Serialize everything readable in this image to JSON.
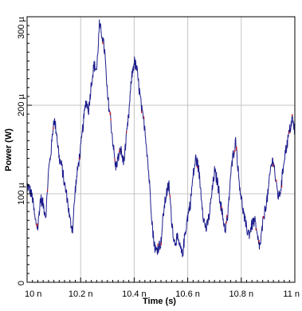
{
  "chart_data": {
    "type": "line",
    "title": "",
    "xlabel": "Time (s)",
    "ylabel": "Power (W)",
    "xlim": [
      10.0,
      11.0
    ],
    "ylim": [
      0,
      300
    ],
    "x_ticks": [
      {
        "value": 10.0,
        "label": "10 n"
      },
      {
        "value": 10.2,
        "label": "10.2 n"
      },
      {
        "value": 10.4,
        "label": "10.4 n"
      },
      {
        "value": 10.6,
        "label": "10.6 n"
      },
      {
        "value": 10.8,
        "label": "10.8 n"
      },
      {
        "value": 11.0,
        "label": "11 n"
      }
    ],
    "y_ticks": [
      {
        "value": 0,
        "label": "0"
      },
      {
        "value": 100,
        "label": "100 µ"
      },
      {
        "value": 200,
        "label": "200 µ"
      },
      {
        "value": 300,
        "label": "300 µ"
      }
    ],
    "grid": true,
    "grid_color": "#c4c4c4",
    "line_color": "#1c1c8c",
    "accent_color": "#d02020",
    "series": [
      {
        "x": [
          10.0,
          10.01,
          10.02,
          10.03,
          10.04,
          10.05,
          10.06,
          10.07,
          10.08,
          10.09,
          10.1,
          10.11,
          10.12,
          10.13,
          10.14,
          10.15,
          10.16,
          10.17,
          10.18,
          10.19,
          10.2,
          10.21,
          10.22,
          10.23,
          10.24,
          10.25,
          10.26,
          10.27,
          10.28,
          10.29,
          10.3,
          10.31,
          10.32,
          10.33,
          10.34,
          10.35,
          10.36,
          10.37,
          10.38,
          10.39,
          10.4,
          10.41,
          10.42,
          10.43,
          10.44,
          10.45,
          10.46,
          10.47,
          10.48,
          10.49,
          10.5,
          10.51,
          10.52,
          10.53,
          10.54,
          10.55,
          10.56,
          10.57,
          10.58,
          10.59,
          10.6,
          10.61,
          10.62,
          10.63,
          10.64,
          10.65,
          10.66,
          10.67,
          10.68,
          10.69,
          10.7,
          10.71,
          10.72,
          10.73,
          10.74,
          10.75,
          10.76,
          10.77,
          10.78,
          10.79,
          10.8,
          10.81,
          10.82,
          10.83,
          10.84,
          10.85,
          10.86,
          10.87,
          10.88,
          10.89,
          10.9,
          10.91,
          10.92,
          10.93,
          10.94,
          10.95,
          10.96,
          10.97,
          10.98,
          10.99,
          11.0
        ],
        "values": [
          110,
          105,
          95,
          70,
          62,
          95,
          88,
          75,
          125,
          150,
          185,
          170,
          140,
          130,
          110,
          95,
          70,
          60,
          105,
          130,
          150,
          180,
          205,
          195,
          225,
          245,
          240,
          290,
          280,
          260,
          210,
          190,
          160,
          130,
          140,
          150,
          135,
          160,
          190,
          230,
          250,
          240,
          215,
          190,
          175,
          140,
          100,
          55,
          35,
          40,
          45,
          80,
          100,
          110,
          70,
          45,
          50,
          40,
          30,
          55,
          75,
          90,
          120,
          140,
          130,
          100,
          70,
          60,
          75,
          100,
          125,
          115,
          95,
          75,
          60,
          75,
          120,
          145,
          160,
          120,
          95,
          75,
          60,
          55,
          65,
          70,
          50,
          40,
          65,
          85,
          100,
          130,
          140,
          110,
          95,
          110,
          140,
          155,
          170,
          185,
          170
        ]
      }
    ]
  }
}
